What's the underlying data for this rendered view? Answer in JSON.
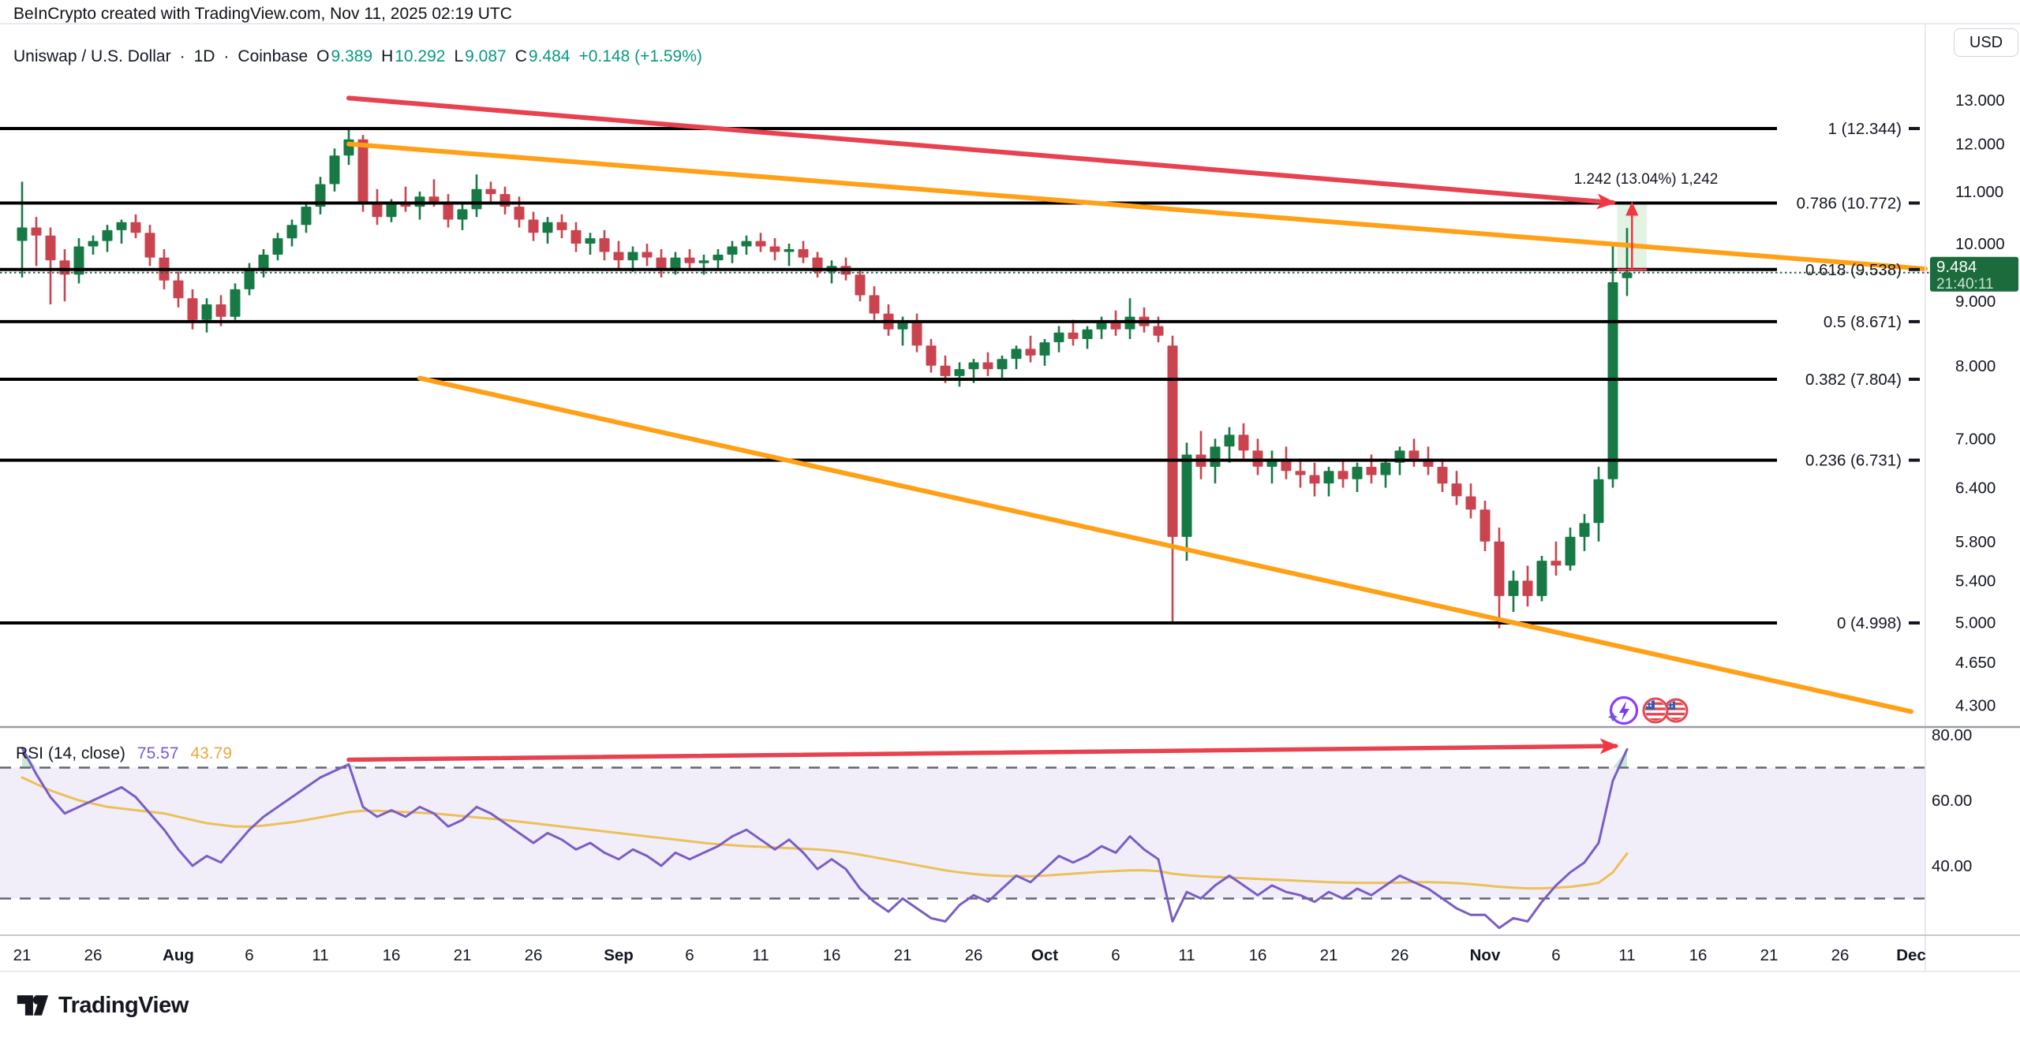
{
  "header": {
    "title": "BeInCrypto created with TradingView.com, Nov 11, 2025 02:19 UTC"
  },
  "symbol_bar": {
    "symbol": "Uniswap / U.S. Dollar",
    "sep1": "·",
    "interval": "1D",
    "sep2": "·",
    "exchange": "Coinbase",
    "o_label": "O",
    "o": "9.389",
    "h_label": "H",
    "h": "10.292",
    "l_label": "L",
    "l": "9.087",
    "c_label": "C",
    "c": "9.484",
    "change": "+0.148 (+1.59%)"
  },
  "price_scale": {
    "currency": "USD",
    "ticks": [
      {
        "value": 13,
        "label": "13.000"
      },
      {
        "value": 12,
        "label": "12.000"
      },
      {
        "value": 11,
        "label": "11.000"
      },
      {
        "value": 10,
        "label": "10.000"
      },
      {
        "value": 9,
        "label": "9.000"
      },
      {
        "value": 8,
        "label": "8.000"
      },
      {
        "value": 7,
        "label": "7.000"
      },
      {
        "value": 6.4,
        "label": "6.400"
      },
      {
        "value": 5.8,
        "label": "5.800"
      },
      {
        "value": 5.4,
        "label": "5.400"
      },
      {
        "value": 5,
        "label": "5.000"
      },
      {
        "value": 4.65,
        "label": "4.650"
      },
      {
        "value": 4.3,
        "label": "4.300"
      }
    ],
    "last_price_label": {
      "price": "9.484",
      "countdown": "21:40:11"
    }
  },
  "rsi_pane": {
    "title": "RSI (14, close)",
    "rsi_value": "75.57",
    "ma_value": "43.79",
    "ticks": [
      {
        "value": 80,
        "label": "80.00"
      },
      {
        "value": 60,
        "label": "60.00"
      },
      {
        "value": 40,
        "label": "40.00"
      }
    ],
    "upper_band": 70,
    "lower_band": 30
  },
  "fib_levels": [
    {
      "level": "1",
      "label": "1 (12.344)",
      "price": 12.344
    },
    {
      "level": "0.786",
      "label": "0.786 (10.772)",
      "price": 10.772
    },
    {
      "level": "0.618",
      "label": "0.618 (9.538)",
      "price": 9.538
    },
    {
      "level": "0.5",
      "label": "0.5 (8.671)",
      "price": 8.671
    },
    {
      "level": "0.382",
      "label": "0.382 (7.804)",
      "price": 7.804
    },
    {
      "level": "0.236",
      "label": "0.236 (6.731)",
      "price": 6.731
    },
    {
      "level": "0",
      "label": "0 (4.998)",
      "price": 4.998
    }
  ],
  "measurement_label": "1.242 (13.04%) 1,242",
  "time_axis": [
    {
      "label": "21",
      "day": 0,
      "bold": false
    },
    {
      "label": "26",
      "day": 5,
      "bold": false
    },
    {
      "label": "Aug",
      "day": 11,
      "bold": true
    },
    {
      "label": "6",
      "day": 16,
      "bold": false
    },
    {
      "label": "11",
      "day": 21,
      "bold": false
    },
    {
      "label": "16",
      "day": 26,
      "bold": false
    },
    {
      "label": "21",
      "day": 31,
      "bold": false
    },
    {
      "label": "26",
      "day": 36,
      "bold": false
    },
    {
      "label": "Sep",
      "day": 42,
      "bold": true
    },
    {
      "label": "6",
      "day": 47,
      "bold": false
    },
    {
      "label": "11",
      "day": 52,
      "bold": false
    },
    {
      "label": "16",
      "day": 57,
      "bold": false
    },
    {
      "label": "21",
      "day": 62,
      "bold": false
    },
    {
      "label": "26",
      "day": 67,
      "bold": false
    },
    {
      "label": "Oct",
      "day": 72,
      "bold": true
    },
    {
      "label": "6",
      "day": 77,
      "bold": false
    },
    {
      "label": "11",
      "day": 82,
      "bold": false
    },
    {
      "label": "16",
      "day": 87,
      "bold": false
    },
    {
      "label": "21",
      "day": 92,
      "bold": false
    },
    {
      "label": "26",
      "day": 97,
      "bold": false
    },
    {
      "label": "Nov",
      "day": 103,
      "bold": true
    },
    {
      "label": "6",
      "day": 108,
      "bold": false
    },
    {
      "label": "11",
      "day": 113,
      "bold": false
    },
    {
      "label": "16",
      "day": 118,
      "bold": false
    },
    {
      "label": "21",
      "day": 123,
      "bold": false
    },
    {
      "label": "26",
      "day": 128,
      "bold": false
    },
    {
      "label": "Dec",
      "day": 133,
      "bold": true
    }
  ],
  "footer": {
    "brand": "TradingView"
  },
  "colors": {
    "up": "#177a45",
    "down": "#c9444e",
    "accent_teal": "#089981",
    "fib_line": "#000000",
    "trend_red": "#e8414f",
    "trend_orange": "#ffa017",
    "rsi_line": "#7a5cc5",
    "rsi_ma": "#ecc05a",
    "band_fill": "rgba(122,92,197,0.10)",
    "band_dash": "#62666f",
    "overbought_fill": "rgba(34,171,84,0.25)",
    "close_dotted": "#355948",
    "label_bg": "#1c6b3c",
    "label_countdown": "#cbe3d3",
    "box_fill": "rgba(76,175,80,0.16)",
    "measure_red": "#f23645",
    "text": "#131722",
    "border": "#e0e3eb",
    "separator": "#9b9ea6",
    "axis_line": "#b2b5be",
    "flag_red": "#e3474f",
    "flag_blue": "#3c5ba9",
    "icon_purple": "#8b3dff",
    "bolt_purple": "#7c3aed",
    "sparkle_blue": "#6d5bd0"
  },
  "chart_data": {
    "type": "candlestick",
    "title": "Uniswap / U.S. Dollar, 1D, Coinbase",
    "ohlc_current": {
      "open": 9.389,
      "high": 10.292,
      "low": 9.087,
      "close": 9.484,
      "change": 0.148,
      "change_pct": 1.59
    },
    "close_line_price": 9.484,
    "price_axis_range": [
      4.1,
      13.4
    ],
    "rsi_axis_range": [
      18,
      86
    ],
    "candles": [
      [
        10.05,
        11.2,
        9.4,
        10.3
      ],
      [
        10.3,
        10.5,
        9.6,
        10.15
      ],
      [
        10.15,
        10.3,
        8.95,
        9.7
      ],
      [
        9.7,
        9.9,
        9.0,
        9.45
      ],
      [
        9.45,
        10.1,
        9.3,
        9.95
      ],
      [
        9.95,
        10.15,
        9.8,
        10.05
      ],
      [
        10.05,
        10.35,
        9.85,
        10.25
      ],
      [
        10.25,
        10.45,
        10.0,
        10.4
      ],
      [
        10.4,
        10.55,
        10.1,
        10.2
      ],
      [
        10.2,
        10.35,
        9.6,
        9.75
      ],
      [
        9.75,
        9.9,
        9.2,
        9.35
      ],
      [
        9.35,
        9.5,
        8.9,
        9.05
      ],
      [
        9.05,
        9.2,
        8.55,
        8.7
      ],
      [
        8.7,
        9.05,
        8.5,
        8.95
      ],
      [
        8.95,
        9.1,
        8.6,
        8.75
      ],
      [
        8.75,
        9.3,
        8.7,
        9.2
      ],
      [
        9.2,
        9.65,
        9.1,
        9.55
      ],
      [
        9.55,
        9.9,
        9.4,
        9.8
      ],
      [
        9.8,
        10.2,
        9.7,
        10.1
      ],
      [
        10.1,
        10.45,
        9.95,
        10.35
      ],
      [
        10.35,
        10.8,
        10.2,
        10.7
      ],
      [
        10.7,
        11.3,
        10.55,
        11.15
      ],
      [
        11.15,
        11.9,
        11.0,
        11.75
      ],
      [
        11.75,
        12.34,
        11.55,
        12.1
      ],
      [
        12.1,
        12.2,
        10.6,
        10.75
      ],
      [
        10.75,
        11.05,
        10.35,
        10.5
      ],
      [
        10.5,
        10.85,
        10.4,
        10.75
      ],
      [
        10.75,
        11.1,
        10.6,
        10.7
      ],
      [
        10.7,
        11.0,
        10.45,
        10.9
      ],
      [
        10.9,
        11.25,
        10.7,
        10.8
      ],
      [
        10.8,
        10.95,
        10.3,
        10.45
      ],
      [
        10.45,
        10.75,
        10.25,
        10.65
      ],
      [
        10.65,
        11.35,
        10.5,
        11.05
      ],
      [
        11.05,
        11.2,
        10.8,
        10.95
      ],
      [
        10.95,
        11.1,
        10.55,
        10.7
      ],
      [
        10.7,
        10.9,
        10.3,
        10.45
      ],
      [
        10.45,
        10.6,
        10.05,
        10.2
      ],
      [
        10.2,
        10.5,
        10.0,
        10.4
      ],
      [
        10.4,
        10.55,
        10.1,
        10.25
      ],
      [
        10.25,
        10.4,
        9.85,
        10.0
      ],
      [
        10.0,
        10.2,
        9.8,
        10.1
      ],
      [
        10.1,
        10.25,
        9.7,
        9.85
      ],
      [
        9.85,
        10.05,
        9.55,
        9.7
      ],
      [
        9.7,
        9.95,
        9.5,
        9.85
      ],
      [
        9.85,
        10.0,
        9.6,
        9.75
      ],
      [
        9.75,
        9.9,
        9.4,
        9.55
      ],
      [
        9.55,
        9.85,
        9.45,
        9.75
      ],
      [
        9.75,
        9.9,
        9.55,
        9.65
      ],
      [
        9.65,
        9.8,
        9.45,
        9.7
      ],
      [
        9.7,
        9.9,
        9.55,
        9.8
      ],
      [
        9.8,
        10.05,
        9.65,
        9.95
      ],
      [
        9.95,
        10.15,
        9.8,
        10.05
      ],
      [
        10.05,
        10.2,
        9.85,
        9.95
      ],
      [
        9.95,
        10.1,
        9.7,
        9.85
      ],
      [
        9.85,
        10.0,
        9.6,
        9.9
      ],
      [
        9.9,
        10.05,
        9.65,
        9.75
      ],
      [
        9.75,
        9.85,
        9.4,
        9.5
      ],
      [
        9.5,
        9.7,
        9.3,
        9.6
      ],
      [
        9.6,
        9.75,
        9.35,
        9.45
      ],
      [
        9.45,
        9.55,
        9.0,
        9.1
      ],
      [
        9.1,
        9.25,
        8.7,
        8.8
      ],
      [
        8.8,
        8.95,
        8.45,
        8.55
      ],
      [
        8.55,
        8.75,
        8.3,
        8.65
      ],
      [
        8.65,
        8.8,
        8.2,
        8.3
      ],
      [
        8.3,
        8.4,
        7.9,
        8.0
      ],
      [
        8.0,
        8.15,
        7.75,
        7.85
      ],
      [
        7.85,
        8.05,
        7.7,
        7.95
      ],
      [
        7.95,
        8.1,
        7.75,
        8.05
      ],
      [
        8.05,
        8.2,
        7.85,
        7.95
      ],
      [
        7.95,
        8.15,
        7.8,
        8.1
      ],
      [
        8.1,
        8.3,
        7.95,
        8.25
      ],
      [
        8.25,
        8.45,
        8.05,
        8.15
      ],
      [
        8.15,
        8.4,
        8.0,
        8.35
      ],
      [
        8.35,
        8.6,
        8.2,
        8.5
      ],
      [
        8.5,
        8.7,
        8.3,
        8.4
      ],
      [
        8.4,
        8.6,
        8.25,
        8.55
      ],
      [
        8.55,
        8.75,
        8.4,
        8.65
      ],
      [
        8.65,
        8.85,
        8.45,
        8.55
      ],
      [
        8.55,
        9.05,
        8.4,
        8.75
      ],
      [
        8.75,
        8.9,
        8.5,
        8.6
      ],
      [
        8.6,
        8.75,
        8.35,
        8.45
      ],
      [
        8.3,
        8.45,
        5.0,
        5.85
      ],
      [
        5.85,
        6.95,
        5.6,
        6.8
      ],
      [
        6.8,
        7.1,
        6.5,
        6.65
      ],
      [
        6.65,
        7.0,
        6.45,
        6.9
      ],
      [
        6.9,
        7.15,
        6.7,
        7.05
      ],
      [
        7.05,
        7.2,
        6.75,
        6.85
      ],
      [
        6.85,
        7.0,
        6.55,
        6.65
      ],
      [
        6.65,
        6.85,
        6.45,
        6.75
      ],
      [
        6.75,
        6.9,
        6.5,
        6.6
      ],
      [
        6.6,
        6.75,
        6.4,
        6.55
      ],
      [
        6.55,
        6.7,
        6.3,
        6.45
      ],
      [
        6.45,
        6.65,
        6.3,
        6.6
      ],
      [
        6.6,
        6.75,
        6.4,
        6.5
      ],
      [
        6.5,
        6.7,
        6.35,
        6.65
      ],
      [
        6.65,
        6.8,
        6.45,
        6.55
      ],
      [
        6.55,
        6.75,
        6.4,
        6.7
      ],
      [
        6.7,
        6.9,
        6.55,
        6.85
      ],
      [
        6.85,
        7.0,
        6.65,
        6.75
      ],
      [
        6.75,
        6.9,
        6.55,
        6.65
      ],
      [
        6.65,
        6.75,
        6.35,
        6.45
      ],
      [
        6.45,
        6.6,
        6.2,
        6.3
      ],
      [
        6.3,
        6.45,
        6.05,
        6.15
      ],
      [
        6.15,
        6.25,
        5.7,
        5.8
      ],
      [
        5.8,
        5.95,
        4.95,
        5.25
      ],
      [
        5.25,
        5.5,
        5.1,
        5.4
      ],
      [
        5.4,
        5.55,
        5.15,
        5.25
      ],
      [
        5.25,
        5.65,
        5.2,
        5.6
      ],
      [
        5.6,
        5.8,
        5.45,
        5.55
      ],
      [
        5.55,
        5.95,
        5.5,
        5.85
      ],
      [
        5.85,
        6.1,
        5.7,
        6.0
      ],
      [
        6.0,
        6.65,
        5.8,
        6.5
      ],
      [
        6.5,
        10.0,
        6.4,
        9.32
      ],
      [
        9.389,
        10.292,
        9.087,
        9.484
      ]
    ],
    "rsi": [
      76,
      68,
      61,
      56,
      58,
      60,
      62,
      64,
      61,
      56,
      51,
      45,
      40,
      43,
      41,
      46,
      51,
      55,
      58,
      61,
      64,
      67,
      69,
      71,
      58,
      55,
      57,
      55,
      58,
      56,
      52,
      54,
      58,
      56,
      53,
      50,
      47,
      50,
      48,
      45,
      47,
      44,
      42,
      45,
      43,
      40,
      44,
      42,
      44,
      46,
      49,
      51,
      48,
      45,
      48,
      44,
      39,
      42,
      39,
      33,
      29,
      26,
      30,
      27,
      24,
      23,
      28,
      31,
      29,
      33,
      37,
      35,
      39,
      43,
      41,
      43,
      46,
      44,
      49,
      45,
      42,
      23,
      32,
      30,
      34,
      37,
      34,
      31,
      34,
      32,
      31,
      29,
      32,
      30,
      33,
      31,
      34,
      37,
      35,
      33,
      30,
      27,
      25,
      25,
      21,
      24,
      23,
      29,
      34,
      38,
      41,
      47,
      66,
      75.6
    ],
    "rsi_ma": [
      67,
      65,
      63,
      61.5,
      60,
      59,
      58,
      57.5,
      57,
      56.5,
      56,
      55,
      54,
      53,
      52.5,
      52,
      52,
      52.3,
      52.8,
      53.3,
      54,
      54.8,
      55.6,
      56.4,
      56.8,
      56.8,
      56.6,
      56.4,
      56.2,
      56,
      55.6,
      55.2,
      54.8,
      54.4,
      54,
      53.5,
      53,
      52.5,
      52,
      51.5,
      51,
      50.5,
      50,
      49.5,
      49,
      48.5,
      48,
      47.5,
      47,
      46.6,
      46.3,
      46,
      45.8,
      45.6,
      45.4,
      45.2,
      45,
      44.6,
      44.1,
      43.4,
      42.6,
      41.8,
      41,
      40.2,
      39.4,
      38.6,
      38,
      37.5,
      37.1,
      36.9,
      36.8,
      36.8,
      37,
      37.3,
      37.6,
      37.9,
      38.2,
      38.4,
      38.6,
      38.6,
      38.4,
      37.6,
      37.1,
      36.8,
      36.6,
      36.4,
      36.2,
      36,
      35.8,
      35.6,
      35.4,
      35.2,
      35,
      34.9,
      34.8,
      34.8,
      34.8,
      34.9,
      35,
      35,
      34.9,
      34.7,
      34.4,
      34,
      33.6,
      33.3,
      33.1,
      33.1,
      33.3,
      33.6,
      34.1,
      34.8,
      38,
      43.79
    ],
    "trendlines": {
      "price_red": {
        "from": {
          "day": 23,
          "price": 13.05
        },
        "to": {
          "day": 112,
          "price": 10.78
        },
        "arrow": true
      },
      "orange_upper": {
        "from": {
          "day": 23,
          "price": 12.0
        },
        "to": {
          "day": 134,
          "price": 9.55
        },
        "arrow": false
      },
      "orange_lower": {
        "from": {
          "day": 28,
          "price": 7.82
        },
        "to": {
          "day": 133,
          "price": 4.25
        },
        "arrow": false
      },
      "rsi_red": {
        "from": {
          "day": 23,
          "rsi": 72.4
        },
        "to": {
          "day": 112.2,
          "rsi": 76.6
        },
        "arrow": true
      }
    },
    "projection_box": {
      "from_day": 112.3,
      "to_day": 114.4,
      "top_price": 10.772,
      "bottom_price": 9.538,
      "arrow_day": 113.35
    }
  }
}
